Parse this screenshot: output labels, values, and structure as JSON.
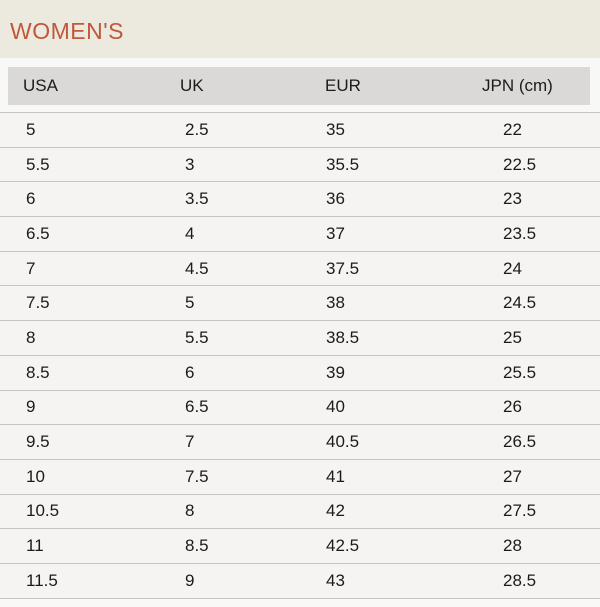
{
  "header": {
    "title": "WOMEN'S"
  },
  "colors": {
    "title_accent": "#c0583c",
    "title_band_background": "#ece9de",
    "page_background": "#f8f8f6",
    "table_header_background": "#dbd9d7",
    "row_background": "#f5f4f2",
    "row_border": "#c6c5c3",
    "text": "#1b1b1b"
  },
  "table": {
    "columns": [
      "USA",
      "UK",
      "EUR",
      "JPN (cm)"
    ],
    "rows": [
      [
        "5",
        "2.5",
        "35",
        "22"
      ],
      [
        "5.5",
        "3",
        "35.5",
        "22.5"
      ],
      [
        "6",
        "3.5",
        "36",
        "23"
      ],
      [
        "6.5",
        "4",
        "37",
        "23.5"
      ],
      [
        "7",
        "4.5",
        "37.5",
        "24"
      ],
      [
        "7.5",
        "5",
        "38",
        "24.5"
      ],
      [
        "8",
        "5.5",
        "38.5",
        "25"
      ],
      [
        "8.5",
        "6",
        "39",
        "25.5"
      ],
      [
        "9",
        "6.5",
        "40",
        "26"
      ],
      [
        "9.5",
        "7",
        "40.5",
        "26.5"
      ],
      [
        "10",
        "7.5",
        "41",
        "27"
      ],
      [
        "10.5",
        "8",
        "42",
        "27.5"
      ],
      [
        "11",
        "8.5",
        "42.5",
        "28"
      ],
      [
        "11.5",
        "9",
        "43",
        "28.5"
      ]
    ]
  }
}
